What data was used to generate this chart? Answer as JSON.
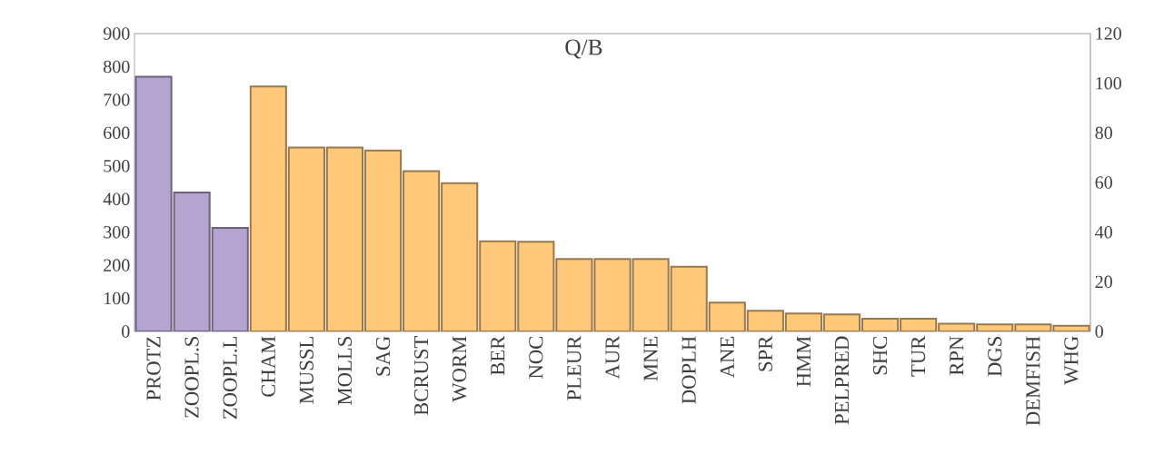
{
  "chart_data": {
    "type": "bar",
    "title": "Q/B",
    "categories": [
      "PROTZ",
      "ZOOPL.S",
      "ZOOPL.L",
      "CHAM",
      "MUSSL",
      "MOLLS",
      "SAG",
      "BCRUST",
      "WORM",
      "BER",
      "NOC",
      "PLEUR",
      "AUR",
      "MNE",
      "DOPLH",
      "ANE",
      "SPR",
      "HMM",
      "PELPRED",
      "SHC",
      "TUR",
      "RPN",
      "DGS",
      "DEMFISH",
      "WHG"
    ],
    "series": [
      {
        "color": "#b4a4d0",
        "values": [
          770,
          420,
          313,
          null,
          null,
          null,
          null,
          null,
          null,
          null,
          null,
          null,
          null,
          null,
          null,
          null,
          null,
          null,
          null,
          null,
          null,
          null,
          null,
          null,
          null
        ]
      },
      {
        "color": "#ffc979",
        "axis": "y2",
        "values": [
          null,
          null,
          null,
          98.7,
          74.1,
          74.1,
          72.9,
          64.6,
          59.7,
          36.3,
          36.1,
          29.2,
          29.2,
          29.2,
          26.1,
          11.6,
          8.3,
          7.2,
          6.9,
          5.1,
          5.1,
          3.1,
          2.8,
          2.8,
          2.3
        ]
      }
    ],
    "ylim": [
      0,
      900
    ],
    "yticks": [
      0,
      100,
      200,
      300,
      400,
      500,
      600,
      700,
      800,
      900
    ],
    "y2lim": [
      0,
      120
    ],
    "y2ticks": [
      0,
      20,
      40,
      60,
      80,
      100,
      120
    ],
    "grid": false
  }
}
